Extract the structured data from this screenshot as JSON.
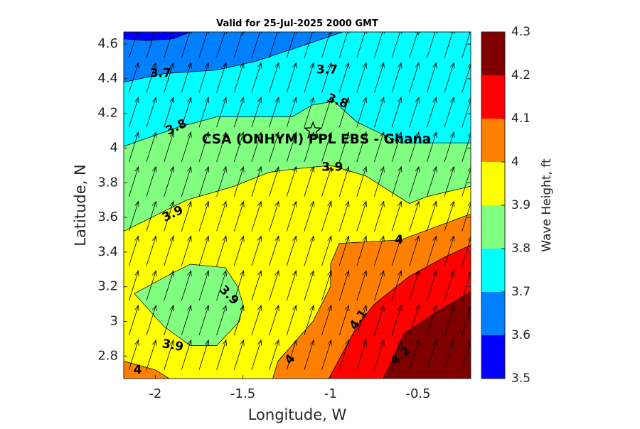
{
  "chart_data": {
    "type": "contour",
    "title": "Valid for 25-Jul-2025 2000 GMT",
    "xlabel": "Longitude, W",
    "ylabel": "Latitude, N",
    "xlim": [
      -2.18,
      -0.2
    ],
    "ylim": [
      2.67,
      4.67
    ],
    "xticks": [
      -2,
      -1.5,
      -1,
      -0.5
    ],
    "yticks": [
      2.8,
      3,
      3.2,
      3.4,
      3.6,
      3.8,
      4,
      4.2,
      4.4,
      4.6
    ],
    "xtick_labels": [
      "-2",
      "-1.5",
      "-1",
      "-0.5"
    ],
    "ytick_labels": [
      "2.8",
      "3",
      "3.2",
      "3.4",
      "3.6",
      "3.8",
      "4",
      "4.2",
      "4.4",
      "4.6"
    ],
    "colorbar": {
      "label": "Wave Height, ft",
      "levels": [
        3.5,
        3.6,
        3.7,
        3.8,
        3.9,
        4.0,
        4.1,
        4.2,
        4.3
      ],
      "tick_labels": [
        "3.5",
        "3.6",
        "3.7",
        "3.8",
        "3.9",
        "4",
        "4.1",
        "4.2",
        "4.3"
      ],
      "colors": [
        "#0000ff",
        "#0080ff",
        "#00ffff",
        "#80ff80",
        "#ffff00",
        "#ff8000",
        "#ff0000",
        "#800000"
      ]
    },
    "regions": [
      {
        "level": "3.5-3.6",
        "color": "#0000ff",
        "points": [
          [
            -2.18,
            4.67
          ],
          [
            -1.8,
            4.67
          ],
          [
            -1.9,
            4.63
          ],
          [
            -2.05,
            4.62
          ],
          [
            -2.18,
            4.63
          ]
        ]
      },
      {
        "level": "3.6-3.7",
        "color": "#0080ff",
        "points": [
          [
            -2.18,
            4.63
          ],
          [
            -2.05,
            4.62
          ],
          [
            -1.9,
            4.63
          ],
          [
            -1.8,
            4.67
          ],
          [
            -0.93,
            4.67
          ],
          [
            -1.22,
            4.57
          ],
          [
            -1.43,
            4.5
          ],
          [
            -1.65,
            4.45
          ],
          [
            -1.95,
            4.43
          ],
          [
            -2.18,
            4.38
          ]
        ]
      },
      {
        "level": "3.7-3.8",
        "color": "#00ffff",
        "points": [
          [
            -2.18,
            4.38
          ],
          [
            -1.95,
            4.43
          ],
          [
            -1.65,
            4.45
          ],
          [
            -1.43,
            4.5
          ],
          [
            -1.22,
            4.57
          ],
          [
            -0.93,
            4.67
          ],
          [
            -0.2,
            4.67
          ],
          [
            -0.2,
            4.03
          ],
          [
            -0.6,
            4.03
          ],
          [
            -0.85,
            4.15
          ],
          [
            -0.98,
            4.27
          ],
          [
            -1.1,
            4.25
          ],
          [
            -1.22,
            4.18
          ],
          [
            -1.38,
            4.18
          ],
          [
            -1.65,
            4.18
          ],
          [
            -1.87,
            4.12
          ],
          [
            -2.18,
            4.01
          ]
        ]
      },
      {
        "level": "3.8-3.9 upper",
        "color": "#80ff80",
        "points": [
          [
            -2.18,
            4.01
          ],
          [
            -1.87,
            4.12
          ],
          [
            -1.65,
            4.18
          ],
          [
            -1.38,
            4.18
          ],
          [
            -1.22,
            4.18
          ],
          [
            -1.1,
            4.25
          ],
          [
            -0.98,
            4.27
          ],
          [
            -0.85,
            4.15
          ],
          [
            -0.6,
            4.03
          ],
          [
            -0.2,
            4.03
          ],
          [
            -0.2,
            3.78
          ],
          [
            -0.45,
            3.72
          ],
          [
            -0.55,
            3.68
          ],
          [
            -0.8,
            3.84
          ],
          [
            -1.0,
            3.9
          ],
          [
            -1.2,
            3.88
          ],
          [
            -1.35,
            3.86
          ],
          [
            -1.55,
            3.78
          ],
          [
            -1.82,
            3.7
          ],
          [
            -2.18,
            3.52
          ]
        ]
      },
      {
        "level": "3.9-4.0",
        "color": "#ffff00",
        "points": [
          [
            -2.18,
            3.52
          ],
          [
            -1.82,
            3.7
          ],
          [
            -1.55,
            3.78
          ],
          [
            -1.35,
            3.86
          ],
          [
            -1.2,
            3.88
          ],
          [
            -1.0,
            3.9
          ],
          [
            -0.8,
            3.84
          ],
          [
            -0.55,
            3.68
          ],
          [
            -0.45,
            3.72
          ],
          [
            -0.2,
            3.78
          ],
          [
            -0.2,
            3.62
          ],
          [
            -0.6,
            3.47
          ],
          [
            -0.95,
            3.45
          ],
          [
            -1.0,
            3.33
          ],
          [
            -1.0,
            3.2
          ],
          [
            -1.1,
            3.0
          ],
          [
            -1.3,
            2.77
          ],
          [
            -1.33,
            2.67
          ],
          [
            -1.92,
            2.67
          ],
          [
            -2.0,
            2.72
          ],
          [
            -2.18,
            2.77
          ]
        ]
      },
      {
        "level": "3.8-3.9 island",
        "color": "#80ff80",
        "points": [
          [
            -1.9,
            3.28
          ],
          [
            -1.8,
            3.33
          ],
          [
            -1.6,
            3.31
          ],
          [
            -1.53,
            3.2
          ],
          [
            -1.5,
            3.1
          ],
          [
            -1.52,
            3.0
          ],
          [
            -1.65,
            2.86
          ],
          [
            -1.8,
            2.86
          ],
          [
            -1.95,
            2.97
          ],
          [
            -2.12,
            3.16
          ]
        ]
      },
      {
        "level": "4.0-4.1 right",
        "color": "#ff8000",
        "points": [
          [
            -0.2,
            3.62
          ],
          [
            -0.6,
            3.47
          ],
          [
            -0.95,
            3.45
          ],
          [
            -1.0,
            3.33
          ],
          [
            -1.0,
            3.2
          ],
          [
            -1.1,
            3.0
          ],
          [
            -1.3,
            2.77
          ],
          [
            -1.33,
            2.67
          ],
          [
            -1.01,
            2.67
          ],
          [
            -0.85,
            2.97
          ],
          [
            -0.75,
            3.1
          ],
          [
            -0.55,
            3.26
          ],
          [
            -0.35,
            3.37
          ],
          [
            -0.2,
            3.44
          ]
        ]
      },
      {
        "level": "4.0-4.1 corner",
        "color": "#ff8000",
        "points": [
          [
            -2.18,
            2.77
          ],
          [
            -2.0,
            2.72
          ],
          [
            -1.92,
            2.67
          ],
          [
            -2.18,
            2.67
          ]
        ]
      },
      {
        "level": "4.1-4.2",
        "color": "#ff0000",
        "points": [
          [
            -1.01,
            2.67
          ],
          [
            -0.85,
            2.97
          ],
          [
            -0.75,
            3.1
          ],
          [
            -0.55,
            3.26
          ],
          [
            -0.35,
            3.37
          ],
          [
            -0.2,
            3.44
          ],
          [
            -0.2,
            3.17
          ],
          [
            -0.4,
            3.05
          ],
          [
            -0.58,
            2.93
          ],
          [
            -0.65,
            2.77
          ],
          [
            -0.7,
            2.67
          ]
        ]
      },
      {
        "level": "4.2-4.3",
        "color": "#800000",
        "points": [
          [
            -0.7,
            2.67
          ],
          [
            -0.65,
            2.77
          ],
          [
            -0.58,
            2.93
          ],
          [
            -0.4,
            3.05
          ],
          [
            -0.2,
            3.17
          ],
          [
            -0.2,
            2.67
          ]
        ]
      }
    ],
    "contour_labels": [
      {
        "text": "3.7",
        "x": -1.97,
        "y": 4.43,
        "angle": 0
      },
      {
        "text": "3.7",
        "x": -1.02,
        "y": 4.45,
        "angle": 0
      },
      {
        "text": "3.8",
        "x": -0.96,
        "y": 4.27,
        "angle": 20
      },
      {
        "text": "3.8",
        "x": -1.88,
        "y": 4.12,
        "angle": -25
      },
      {
        "text": "3.9",
        "x": -0.99,
        "y": 3.89,
        "angle": 0
      },
      {
        "text": "3.9",
        "x": -1.9,
        "y": 3.62,
        "angle": -25
      },
      {
        "text": "3.9",
        "x": -1.58,
        "y": 3.15,
        "angle": 45
      },
      {
        "text": "3.9",
        "x": -1.9,
        "y": 2.86,
        "angle": 10
      },
      {
        "text": "4",
        "x": -0.61,
        "y": 3.47,
        "angle": 0
      },
      {
        "text": "4",
        "x": -2.1,
        "y": 2.72,
        "angle": 0
      },
      {
        "text": "4",
        "x": -1.23,
        "y": 2.78,
        "angle": -50
      },
      {
        "text": "4.1",
        "x": -0.84,
        "y": 3.01,
        "angle": -55
      },
      {
        "text": "4.2",
        "x": -0.6,
        "y": 2.8,
        "angle": -40
      }
    ],
    "arrow_grid": {
      "x_start": -2.15,
      "x_step": 0.1,
      "x_count": 20,
      "y_start": 2.72,
      "y_step": 0.2,
      "y_count": 10,
      "direction": [
        0.3,
        0.95
      ]
    },
    "site": {
      "name": "CSA (ONHYM) PPL EBS  - Ghana",
      "lon": -1.1,
      "lat": 4.1
    }
  }
}
